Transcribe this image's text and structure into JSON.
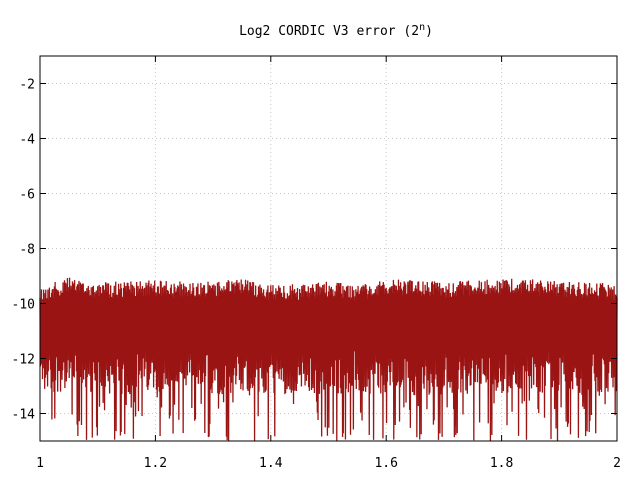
{
  "chart_data": {
    "type": "line",
    "title": "Log2 CORDIC V3 error (2",
    "title_superscript": "n",
    "title_close": ")",
    "xlabel": "",
    "ylabel": "",
    "xlim": [
      1,
      2
    ],
    "ylim": [
      -15,
      -1
    ],
    "xticks": [
      1,
      1.2,
      1.4,
      1.6,
      1.8,
      2
    ],
    "xtick_labels": [
      "1",
      "1.2",
      "1.4",
      "1.6",
      "1.8",
      "2"
    ],
    "yticks": [
      -2,
      -4,
      -6,
      -8,
      -10,
      -12,
      -14
    ],
    "ytick_labels": [
      "-2",
      "-4",
      "-6",
      "-8",
      "-10",
      "-12",
      "-14"
    ],
    "grid": true,
    "legend": "none",
    "series": [
      {
        "color": "#9b1414",
        "envelope": {
          "x": [
            1.0,
            1.05,
            1.1,
            1.15,
            1.2,
            1.25,
            1.3,
            1.35,
            1.4,
            1.45,
            1.5,
            1.55,
            1.6,
            1.65,
            1.7,
            1.75,
            1.8,
            1.85,
            1.9,
            1.95,
            2.0
          ],
          "upper": [
            -9.4,
            -9.05,
            -9.2,
            -9.2,
            -9.15,
            -9.2,
            -9.2,
            -9.1,
            -9.3,
            -9.3,
            -9.2,
            -9.3,
            -9.15,
            -9.1,
            -9.2,
            -9.15,
            -9.1,
            -9.1,
            -9.2,
            -9.2,
            -9.3
          ],
          "floor": [
            -13.3,
            -13.2,
            -13.3,
            -13.4,
            -13.2,
            -13.3,
            -13.3,
            -13.4,
            -13.3,
            -13.3,
            -13.3,
            -13.3,
            -13.4,
            -13.4,
            -13.3,
            -13.3,
            -13.3,
            -13.2,
            -13.3,
            -13.4,
            -13.3
          ],
          "deep_min": -15
        }
      }
    ]
  }
}
